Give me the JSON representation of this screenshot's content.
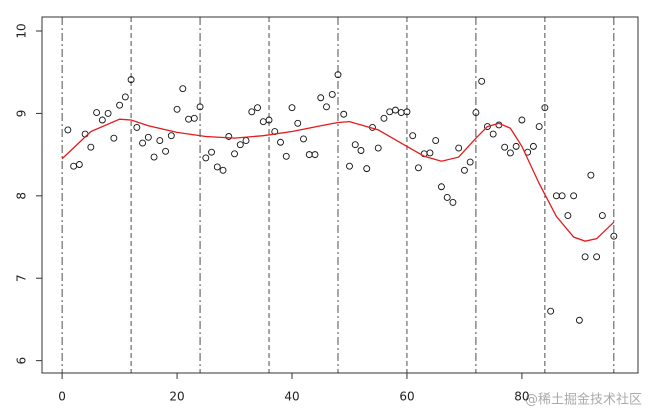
{
  "chart_data": {
    "type": "scatter",
    "x": [
      1,
      2,
      3,
      4,
      5,
      6,
      7,
      8,
      9,
      10,
      11,
      12,
      13,
      14,
      15,
      16,
      17,
      18,
      19,
      20,
      21,
      22,
      23,
      24,
      25,
      26,
      27,
      28,
      29,
      30,
      31,
      32,
      33,
      34,
      35,
      36,
      37,
      38,
      39,
      40,
      41,
      42,
      43,
      44,
      45,
      46,
      47,
      48,
      49,
      50,
      51,
      52,
      53,
      54,
      55,
      56,
      57,
      58,
      59,
      60,
      61,
      62,
      63,
      64,
      65,
      66,
      67,
      68,
      69,
      70,
      71,
      72,
      73,
      74,
      75,
      76,
      77,
      78,
      79,
      80,
      81,
      82,
      83,
      84,
      85,
      86,
      87,
      88,
      89,
      90,
      91,
      92,
      93,
      94,
      96
    ],
    "values": [
      8.8,
      8.36,
      8.38,
      8.75,
      8.59,
      9.01,
      8.92,
      9.0,
      8.7,
      9.1,
      9.2,
      9.41,
      8.83,
      8.64,
      8.71,
      8.47,
      8.67,
      8.54,
      8.73,
      9.05,
      9.3,
      8.93,
      8.94,
      9.08,
      8.46,
      8.53,
      8.35,
      8.31,
      8.72,
      8.51,
      8.62,
      8.67,
      9.02,
      9.07,
      8.9,
      8.92,
      8.78,
      8.65,
      8.48,
      9.07,
      8.88,
      8.69,
      8.5,
      8.5,
      9.19,
      9.08,
      9.23,
      9.47,
      8.99,
      8.36,
      8.62,
      8.55,
      8.33,
      8.83,
      8.58,
      8.94,
      9.02,
      9.04,
      9.01,
      9.02,
      8.73,
      8.34,
      8.51,
      8.52,
      8.67,
      8.11,
      7.98,
      7.92,
      8.58,
      8.31,
      8.41,
      9.01,
      9.39,
      8.84,
      8.75,
      8.86,
      8.59,
      8.52,
      8.6,
      8.92,
      8.53,
      8.6,
      8.84,
      9.07,
      6.6,
      8.0,
      8.0,
      7.76,
      8.0,
      6.49,
      7.26,
      8.25,
      7.26,
      7.76,
      7.51
    ],
    "fit": {
      "color": "#e41a1c",
      "x": [
        0,
        5,
        10,
        12,
        15,
        20,
        25,
        30,
        35,
        40,
        45,
        48,
        50,
        55,
        60,
        63,
        66,
        69,
        72,
        74,
        76,
        78,
        80,
        83,
        86,
        89,
        91,
        93,
        96
      ],
      "values": [
        8.45,
        8.78,
        8.93,
        8.92,
        8.85,
        8.77,
        8.72,
        8.7,
        8.73,
        8.78,
        8.85,
        8.89,
        8.9,
        8.8,
        8.6,
        8.48,
        8.42,
        8.47,
        8.7,
        8.84,
        8.88,
        8.82,
        8.6,
        8.15,
        7.75,
        7.5,
        7.45,
        7.48,
        7.68
      ]
    },
    "knots": [
      0,
      12,
      24,
      36,
      48,
      60,
      72,
      84,
      96
    ],
    "xlim": [
      -3.5,
      100.2
    ],
    "ylim": [
      5.85,
      10.17
    ],
    "xticks": [
      0,
      20,
      40,
      60,
      80
    ],
    "yticks": [
      6,
      7,
      8,
      9,
      10
    ],
    "watermark": "@稀土掘金技术社区"
  }
}
